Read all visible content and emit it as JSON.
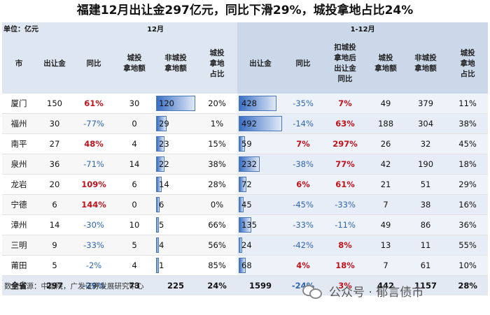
{
  "title": "福建12月出让金297亿元，同比下滑29%，城投拿地占比24%",
  "unit_label": "单位：亿元",
  "group_headers": {
    "dec": "12月",
    "ytd": "1-12月"
  },
  "columns": {
    "city": "市",
    "dec_amount": "出让金",
    "dec_yoy": "同比",
    "dec_lgfv": "城投\n拿地额",
    "dec_non_lgfv": "非城投\n拿地额",
    "dec_share": "城投\n拿地\n占比",
    "ytd_amount": "出让金",
    "ytd_yoy": "同比",
    "ytd_ex_yoy": "扣城投\n拿地后\n出让金\n同比",
    "ytd_lgfv": "城投\n拿地额",
    "ytd_non_lgfv": "非城投\n拿地额",
    "ytd_share": "城投\n拿地\n占比"
  },
  "rows": [
    {
      "city": "厦门",
      "dec_amount": "150",
      "dec_yoy": "61%",
      "dec_lgfv": "30",
      "dec_non_lgfv": "120",
      "dec_share": "20%",
      "ytd_amount": "428",
      "ytd_yoy": "-35%",
      "ytd_ex_yoy": "7%",
      "ytd_lgfv": "49",
      "ytd_non_lgfv": "379",
      "ytd_share": "11%"
    },
    {
      "city": "福州",
      "dec_amount": "30",
      "dec_yoy": "-77%",
      "dec_lgfv": "0",
      "dec_non_lgfv": "29",
      "dec_share": "1%",
      "ytd_amount": "492",
      "ytd_yoy": "-14%",
      "ytd_ex_yoy": "63%",
      "ytd_lgfv": "188",
      "ytd_non_lgfv": "304",
      "ytd_share": "38%"
    },
    {
      "city": "南平",
      "dec_amount": "27",
      "dec_yoy": "48%",
      "dec_lgfv": "4",
      "dec_non_lgfv": "23",
      "dec_share": "15%",
      "ytd_amount": "59",
      "ytd_yoy": "7%",
      "ytd_ex_yoy": "297%",
      "ytd_lgfv": "26",
      "ytd_non_lgfv": "32",
      "ytd_share": "45%"
    },
    {
      "city": "泉州",
      "dec_amount": "36",
      "dec_yoy": "-71%",
      "dec_lgfv": "14",
      "dec_non_lgfv": "22",
      "dec_share": "38%",
      "ytd_amount": "232",
      "ytd_yoy": "-38%",
      "ytd_ex_yoy": "77%",
      "ytd_lgfv": "42",
      "ytd_non_lgfv": "190",
      "ytd_share": "18%"
    },
    {
      "city": "龙岩",
      "dec_amount": "20",
      "dec_yoy": "109%",
      "dec_lgfv": "6",
      "dec_non_lgfv": "14",
      "dec_share": "28%",
      "ytd_amount": "72",
      "ytd_yoy": "6%",
      "ytd_ex_yoy": "61%",
      "ytd_lgfv": "21",
      "ytd_non_lgfv": "51",
      "ytd_share": "29%"
    },
    {
      "city": "宁德",
      "dec_amount": "6",
      "dec_yoy": "144%",
      "dec_lgfv": "0",
      "dec_non_lgfv": "6",
      "dec_share": "0%",
      "ytd_amount": "45",
      "ytd_yoy": "-45%",
      "ytd_ex_yoy": "-33%",
      "ytd_lgfv": "7",
      "ytd_non_lgfv": "38",
      "ytd_share": "16%"
    },
    {
      "city": "漳州",
      "dec_amount": "14",
      "dec_yoy": "-30%",
      "dec_lgfv": "10",
      "dec_non_lgfv": "5",
      "dec_share": "66%",
      "ytd_amount": "135",
      "ytd_yoy": "-33%",
      "ytd_ex_yoy": "-11%",
      "ytd_lgfv": "49",
      "ytd_non_lgfv": "86",
      "ytd_share": "36%"
    },
    {
      "city": "三明",
      "dec_amount": "9",
      "dec_yoy": "-33%",
      "dec_lgfv": "5",
      "dec_non_lgfv": "4",
      "dec_share": "56%",
      "ytd_amount": "24",
      "ytd_yoy": "-42%",
      "ytd_ex_yoy": "8%",
      "ytd_lgfv": "13",
      "ytd_non_lgfv": "11",
      "ytd_share": "55%"
    },
    {
      "city": "莆田",
      "dec_amount": "5",
      "dec_yoy": "-2%",
      "dec_lgfv": "4",
      "dec_non_lgfv": "1",
      "dec_share": "85%",
      "ytd_amount": "68",
      "ytd_yoy": "4%",
      "ytd_ex_yoy": "18%",
      "ytd_lgfv": "7",
      "ytd_non_lgfv": "61",
      "ytd_share": "10%"
    }
  ],
  "total": {
    "city": "全省",
    "dec_amount": "297",
    "dec_yoy": "-29%",
    "dec_lgfv": "73",
    "dec_non_lgfv": "225",
    "dec_share": "24%",
    "ytd_amount": "1599",
    "ytd_yoy": "-24%",
    "ytd_ex_yoy": "3%",
    "ytd_lgfv": "442",
    "ytd_non_lgfv": "1157",
    "ytd_share": "28%"
  },
  "colors": {
    "positive": "#c0121b",
    "negative": "#2f65b0",
    "bar": "#3a6fc4"
  },
  "source": "数据来源：中指院，广发证券发展研究中心",
  "watermark": {
    "text": "公众号 · 郁言债市",
    "icon": "wechat-icon"
  }
}
